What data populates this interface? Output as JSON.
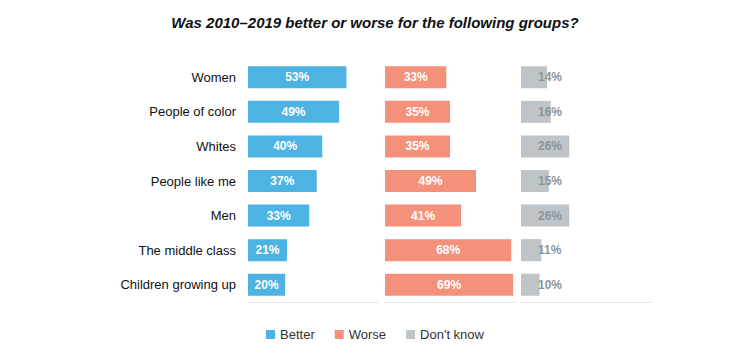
{
  "chart_data": {
    "type": "bar",
    "title": "Was 2010–2019 better or worse for the following groups?",
    "orientation": "horizontal",
    "categories": [
      "Women",
      "People of color",
      "Whites",
      "People like me",
      "Men",
      "The middle class",
      "Children growing up"
    ],
    "series": [
      {
        "name": "Better",
        "color": "#4cb3e3",
        "values": [
          53,
          49,
          40,
          37,
          33,
          21,
          20
        ],
        "value_labels": [
          "53%",
          "49%",
          "40%",
          "37%",
          "33%",
          "21%",
          "20%"
        ]
      },
      {
        "name": "Worse",
        "color": "#f4917a",
        "values": [
          33,
          35,
          35,
          49,
          41,
          68,
          69
        ],
        "value_labels": [
          "33%",
          "35%",
          "35%",
          "49%",
          "41%",
          "68%",
          "69%"
        ]
      },
      {
        "name": "Don't know",
        "color": "#bec4c8",
        "values": [
          14,
          16,
          26,
          15,
          26,
          11,
          10
        ],
        "value_labels": [
          "14%",
          "16%",
          "26%",
          "15%",
          "26%",
          "11%",
          "10%"
        ]
      }
    ],
    "xlim": [
      0,
      70
    ],
    "tick_labels": false,
    "grid": false,
    "data_labels": true,
    "legend": "bottom"
  }
}
